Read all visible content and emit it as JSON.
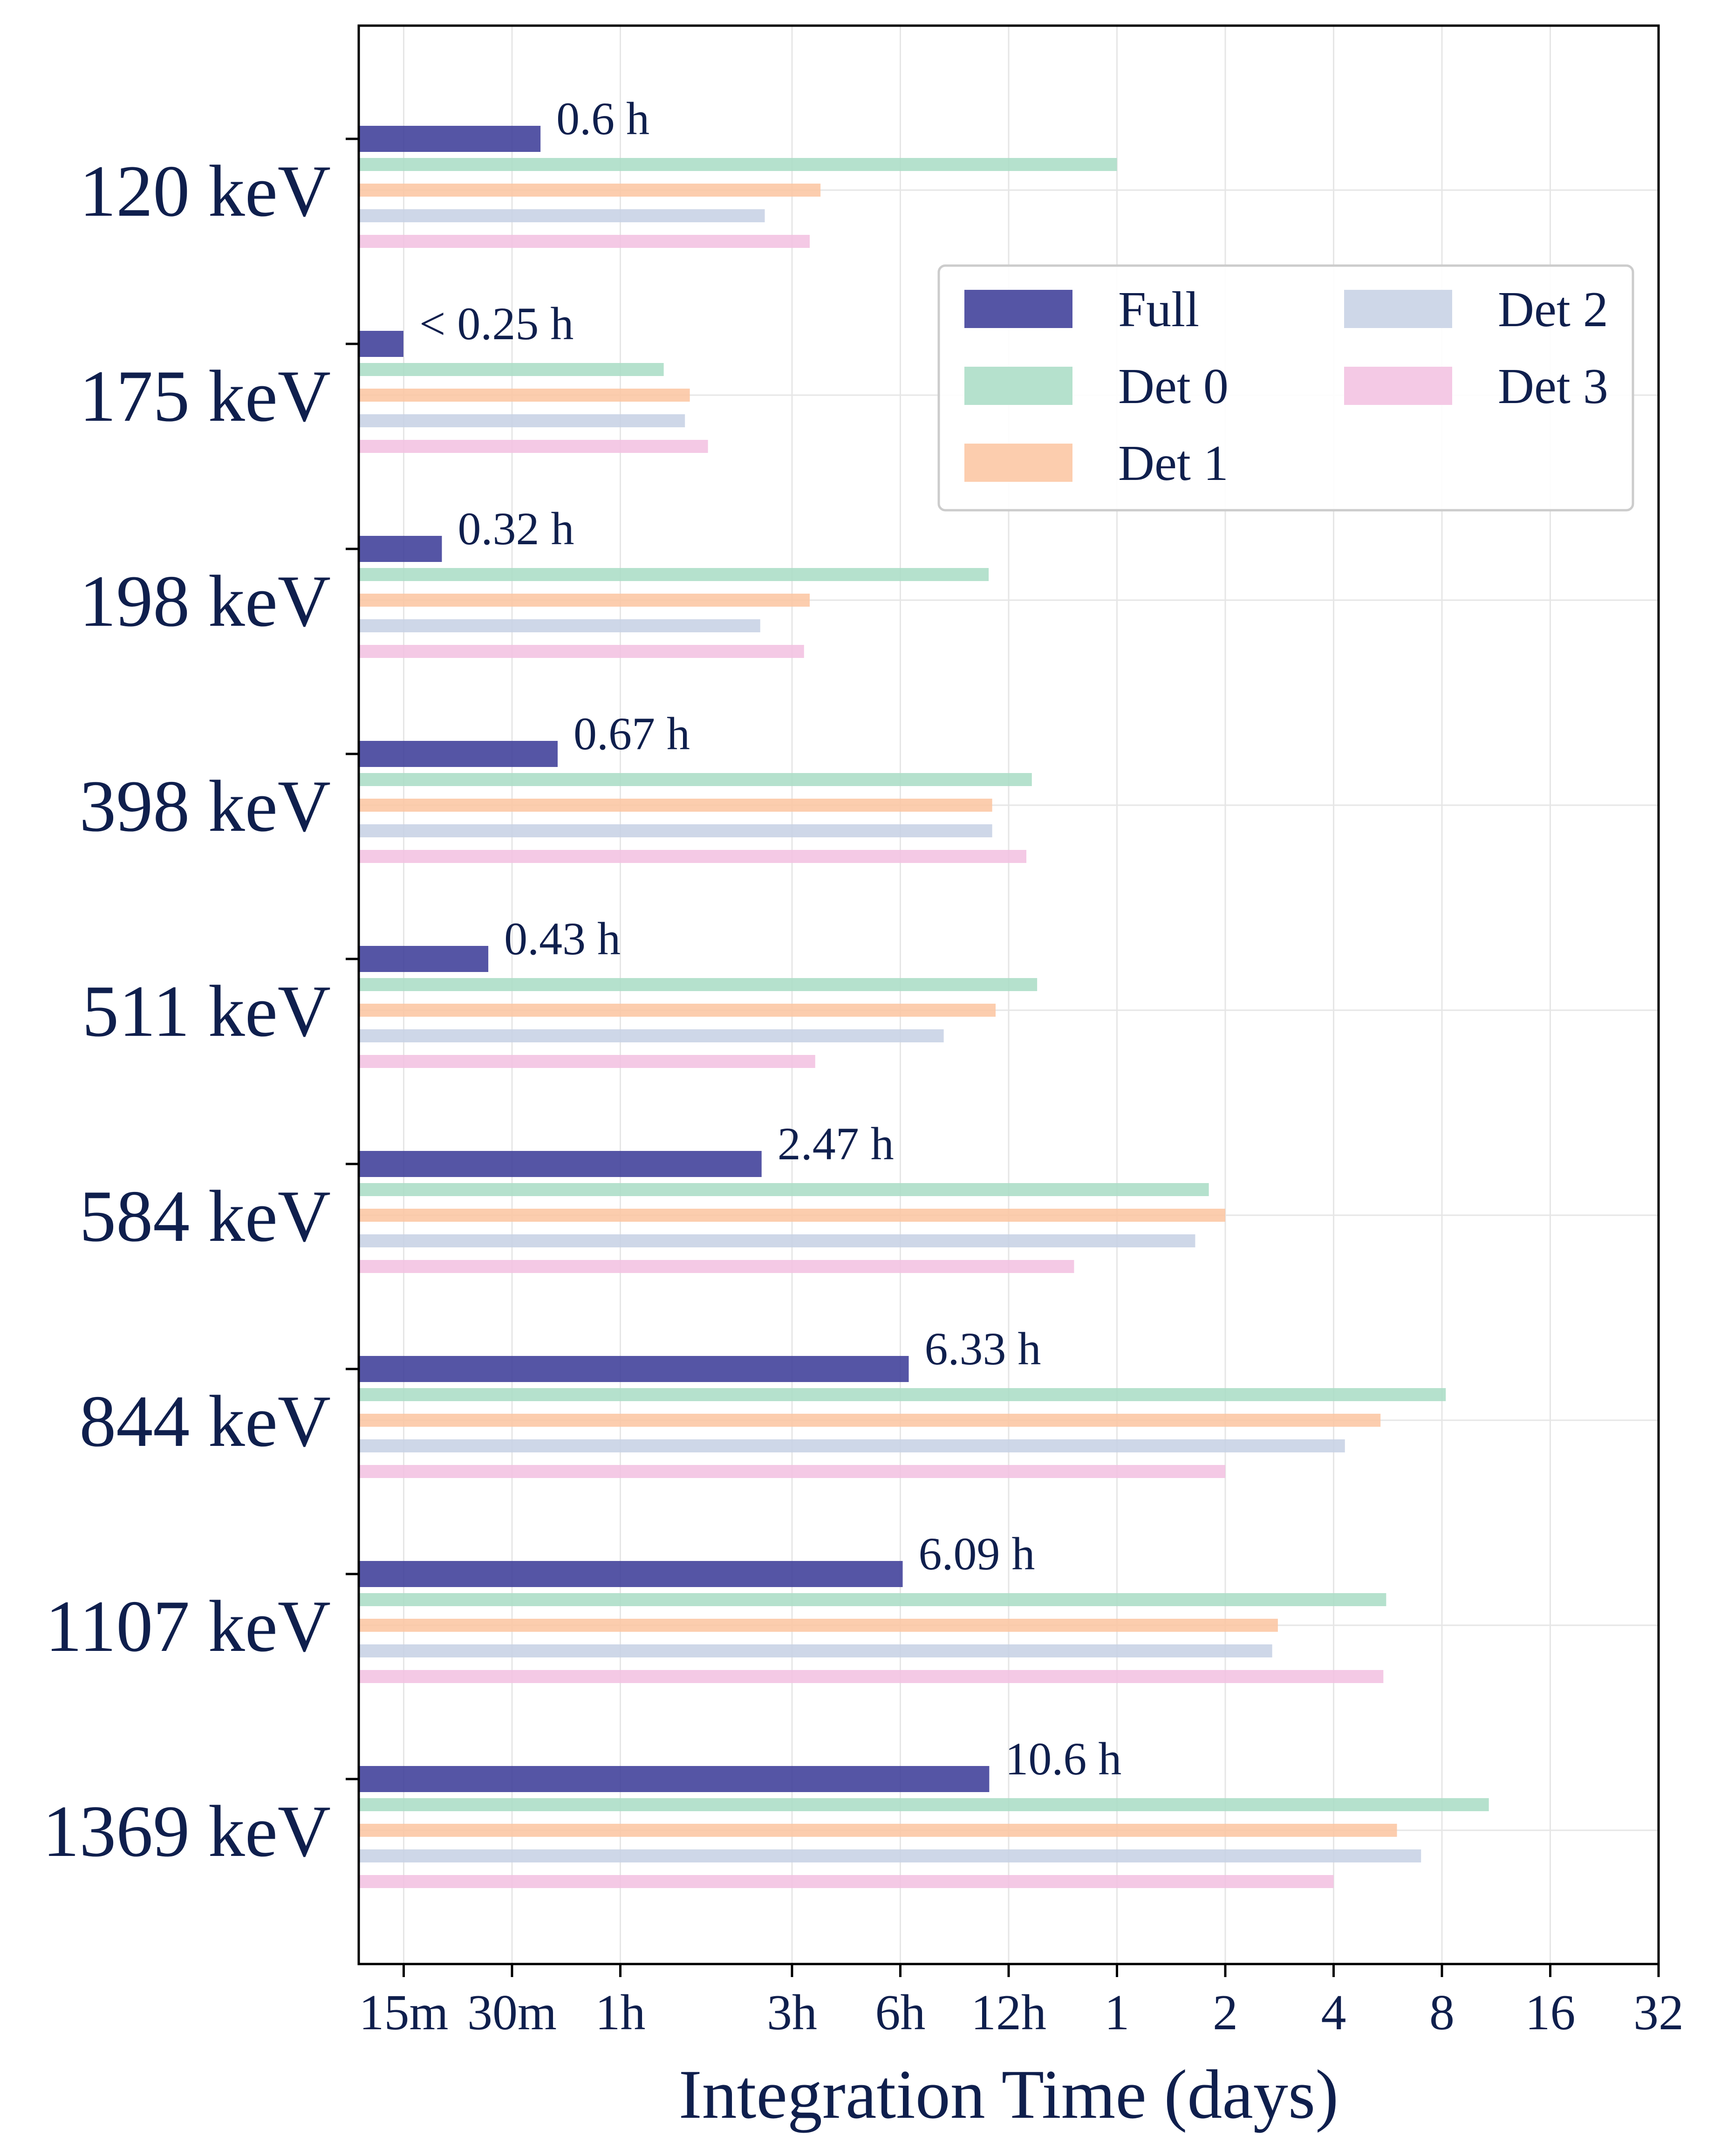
{
  "chart_data": {
    "type": "bar",
    "orientation": "horizontal",
    "xlabel": "Integration Time (days)",
    "ylabel": "",
    "x_scale": "log2",
    "xlim": [
      0.0078125,
      32
    ],
    "x_ticks": [
      {
        "value": 0.0104167,
        "label": "15m"
      },
      {
        "value": 0.0208333,
        "label": "30m"
      },
      {
        "value": 0.0416667,
        "label": "1h"
      },
      {
        "value": 0.125,
        "label": "3h"
      },
      {
        "value": 0.25,
        "label": "6h"
      },
      {
        "value": 0.5,
        "label": "12h"
      },
      {
        "value": 1,
        "label": "1"
      },
      {
        "value": 2,
        "label": "2"
      },
      {
        "value": 4,
        "label": "4"
      },
      {
        "value": 8,
        "label": "8"
      },
      {
        "value": 16,
        "label": "16"
      },
      {
        "value": 32,
        "label": "32"
      }
    ],
    "grid": true,
    "legend_position": "top-right",
    "categories": [
      "120 keV",
      "175 keV",
      "198 keV",
      "398 keV",
      "511 keV",
      "584 keV",
      "844 keV",
      "1107 keV",
      "1369 keV"
    ],
    "annotations": [
      "0.6 h",
      "< 0.25 h",
      "0.32 h",
      "0.67 h",
      "0.43 h",
      "2.47 h",
      "6.33 h",
      "6.09 h",
      "10.6 h"
    ],
    "series": [
      {
        "name": "Full",
        "color": "#3d3d99",
        "values": [
          0.025,
          0.0104,
          0.0133,
          0.0279,
          0.0179,
          0.1029,
          0.2638,
          0.2538,
          0.4417
        ]
      },
      {
        "name": "Det 0",
        "color": "#a8dcc4",
        "values": [
          1.0,
          0.055,
          0.44,
          0.58,
          0.6,
          1.8,
          8.2,
          5.6,
          10.8
        ]
      },
      {
        "name": "Det 1",
        "color": "#fcc4a0",
        "values": [
          0.15,
          0.065,
          0.14,
          0.45,
          0.46,
          2.0,
          5.4,
          2.8,
          6.0
        ]
      },
      {
        "name": "Det 2",
        "color": "#c6d0e4",
        "values": [
          0.105,
          0.063,
          0.102,
          0.45,
          0.33,
          1.65,
          4.3,
          2.7,
          7.0
        ]
      },
      {
        "name": "Det 3",
        "color": "#f2c0e0",
        "values": [
          0.14,
          0.073,
          0.135,
          0.56,
          0.145,
          0.76,
          2.0,
          5.5,
          4.0
        ]
      }
    ]
  }
}
